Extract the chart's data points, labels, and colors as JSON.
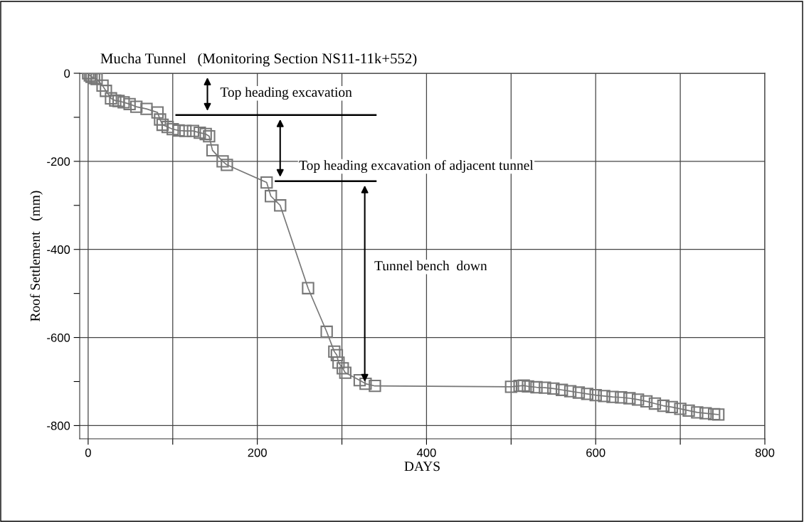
{
  "chart_data": {
    "type": "line",
    "title": "Mucha Tunnel   (Monitoring Section NS11-11k+552)",
    "xlabel": "DAYS",
    "ylabel": "Roof Settlement   (mm)",
    "x": [
      0,
      2,
      4,
      7,
      10,
      17,
      21,
      27,
      32,
      36,
      42,
      49,
      57,
      69,
      82,
      85,
      88,
      94,
      100,
      107,
      115,
      124,
      132,
      139,
      143,
      147,
      159,
      164,
      211,
      216,
      227,
      260,
      282,
      291,
      294,
      296,
      301,
      304,
      321,
      328,
      339,
      500,
      510,
      515,
      520,
      530,
      540,
      550,
      560,
      570,
      580,
      590,
      600,
      610,
      620,
      630,
      640,
      650,
      660,
      670,
      680,
      690,
      700,
      710,
      720,
      730,
      740,
      745
    ],
    "series": [
      {
        "color": "#777777",
        "values": [
          0,
          -5,
          -8,
          -11,
          -13,
          -28,
          -40,
          -57,
          -62,
          -63,
          -66,
          -70,
          -76,
          -81,
          -89,
          -105,
          -117,
          -122,
          -127,
          -130,
          -131,
          -131,
          -135,
          -138,
          -143,
          -175,
          -200,
          -208,
          -248,
          -279,
          -300,
          -488,
          -587,
          -632,
          -640,
          -657,
          -670,
          -680,
          -697,
          -705,
          -710,
          -712,
          -710,
          -709,
          -711,
          -713,
          -714,
          -716,
          -719,
          -722,
          -725,
          -728,
          -731,
          -733,
          -735,
          -736,
          -738,
          -741,
          -745,
          -750,
          -755,
          -758,
          -762,
          -766,
          -770,
          -772,
          -774,
          -775
        ]
      }
    ],
    "annotations": [
      "Top heading excavation",
      "Top heading excavation of adjacent tunnel",
      "Tunnel bench  down"
    ],
    "ref_lines": [
      {
        "axis": "y",
        "value": -95,
        "color": "#000000"
      },
      {
        "axis": "y",
        "value": -245,
        "color": "#000000"
      }
    ],
    "xlim": [
      -10,
      800
    ],
    "ylim": [
      -830,
      0
    ],
    "xticks": [
      0,
      {
        "value": 100,
        "label": null
      },
      200,
      {
        "value": 300,
        "label": null
      },
      400,
      {
        "value": 500,
        "label": null
      },
      600,
      {
        "value": 700,
        "label": null
      },
      800
    ],
    "yticks": [
      0,
      {
        "value": -100,
        "label": null
      },
      -200,
      {
        "value": -300,
        "label": null
      },
      -400,
      {
        "value": -500,
        "label": null
      },
      -600,
      {
        "value": -700,
        "label": null
      },
      -800
    ],
    "grid": true,
    "marker": "square",
    "line_style": "solid",
    "legend": false
  }
}
